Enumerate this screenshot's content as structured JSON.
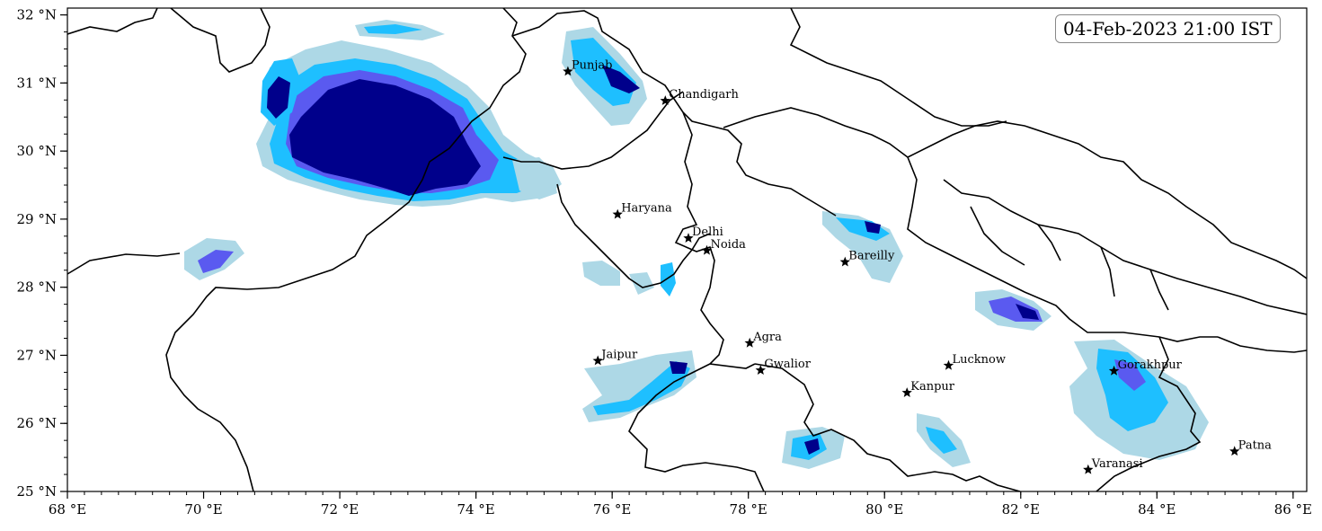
{
  "timestamp": "04-Feb-2023 21:00 IST",
  "map": {
    "lon_range": [
      68,
      86.2
    ],
    "lat_range": [
      25,
      32.1
    ],
    "x_ticks": [
      {
        "value": 68,
        "label": "68 °E"
      },
      {
        "value": 70,
        "label": "70 °E"
      },
      {
        "value": 72,
        "label": "72 °E"
      },
      {
        "value": 74,
        "label": "74 °E"
      },
      {
        "value": 76,
        "label": "76 °E"
      },
      {
        "value": 78,
        "label": "78 °E"
      },
      {
        "value": 80,
        "label": "80 °E"
      },
      {
        "value": 82,
        "label": "82 °E"
      },
      {
        "value": 84,
        "label": "84 °E"
      },
      {
        "value": 86,
        "label": "86 °E"
      }
    ],
    "y_ticks": [
      {
        "value": 25,
        "label": "25 °N"
      },
      {
        "value": 26,
        "label": "26 °N"
      },
      {
        "value": 27,
        "label": "27 °N"
      },
      {
        "value": 28,
        "label": "28 °N"
      },
      {
        "value": 29,
        "label": "29 °N"
      },
      {
        "value": 30,
        "label": "30 °N"
      },
      {
        "value": 31,
        "label": "31 °N"
      },
      {
        "value": 32,
        "label": "32 °N"
      }
    ],
    "cities": [
      {
        "name": "Punjab",
        "lon": 75.35,
        "lat": 31.17
      },
      {
        "name": "Chandigarh",
        "lon": 76.78,
        "lat": 30.74
      },
      {
        "name": "Haryana",
        "lon": 76.08,
        "lat": 29.07
      },
      {
        "name": "Delhi",
        "lon": 77.12,
        "lat": 28.72
      },
      {
        "name": "Noida",
        "lon": 77.39,
        "lat": 28.54
      },
      {
        "name": "Bareilly",
        "lon": 79.42,
        "lat": 28.37
      },
      {
        "name": "Agra",
        "lon": 78.02,
        "lat": 27.18
      },
      {
        "name": "Jaipur",
        "lon": 75.79,
        "lat": 26.92
      },
      {
        "name": "Gwalior",
        "lon": 78.18,
        "lat": 26.78
      },
      {
        "name": "Lucknow",
        "lon": 80.94,
        "lat": 26.85
      },
      {
        "name": "Kanpur",
        "lon": 80.33,
        "lat": 26.45
      },
      {
        "name": "Gorakhpur",
        "lon": 83.37,
        "lat": 26.77
      },
      {
        "name": "Varanasi",
        "lon": 82.99,
        "lat": 25.32
      },
      {
        "name": "Patna",
        "lon": 85.14,
        "lat": 25.59
      }
    ],
    "colors": {
      "level1": "#add8e6",
      "level2": "#1ebfff",
      "level3": "#5a5af0",
      "level4": "#00008b",
      "star": "#000000",
      "border": "#000000"
    }
  }
}
